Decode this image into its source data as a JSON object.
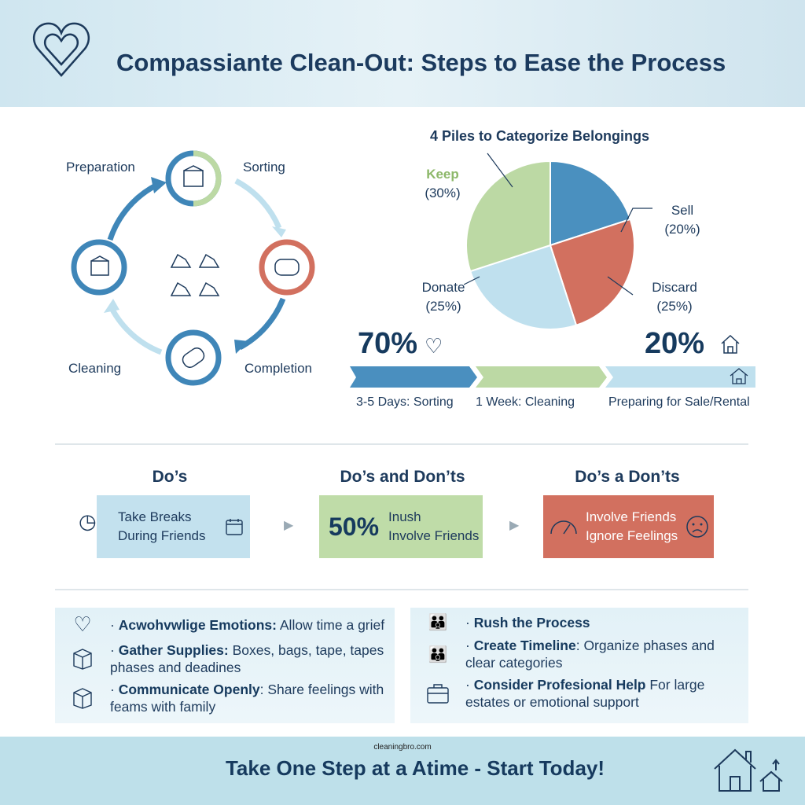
{
  "header": {
    "title": "Compassiante Clean-Out: Steps to Ease the Process",
    "icon": "heart-icon"
  },
  "cycle": {
    "steps": [
      {
        "label": "Preparation",
        "icon": "box-icon"
      },
      {
        "label": "Sorting",
        "icon": "sponge-icon"
      },
      {
        "label": "Completion",
        "icon": "sponge-icon"
      },
      {
        "label": "Cleaning",
        "icon": "box-icon"
      }
    ],
    "center_icon": "piles-icon"
  },
  "pie": {
    "title": "4 Piles to Categorize Belongings",
    "slices": [
      {
        "label": "Sell",
        "pct_label": "(20%)",
        "value": 20,
        "color": "#4a90bf"
      },
      {
        "label": "Discard",
        "pct_label": "(25%)",
        "value": 25,
        "color": "#d2705f"
      },
      {
        "label": "Donate",
        "pct_label": "(25%)",
        "value": 25,
        "color": "#bfe0ee"
      },
      {
        "label": "Keep",
        "pct_label": "(30%)",
        "value": 30,
        "color": "#bcd9a4"
      }
    ]
  },
  "stats": {
    "left": "70%",
    "right": "20%"
  },
  "timeline": [
    {
      "label": "3-5 Days: Sorting",
      "color": "#4a8fbf"
    },
    {
      "label": "1 Week: Cleaning",
      "color": "#bcd9a4"
    },
    {
      "label": "Preparing for Sale/Rental",
      "color": "#bfe0ee"
    }
  ],
  "dos": {
    "headers": [
      "Do’s",
      "Do’s and Don’ts",
      "Do’s a Don’ts"
    ],
    "boxes": [
      {
        "lines": [
          "Take Breaks",
          "During Friends"
        ],
        "color": "#c3e1ee"
      },
      {
        "stat": "50%",
        "lines": [
          "Inush",
          "Involve Friends"
        ],
        "color": "#bfdca8"
      },
      {
        "lines": [
          "Involve Friends",
          "Ignore Feelings"
        ],
        "color": "#d2705f"
      }
    ]
  },
  "tips_left": [
    {
      "bold": "Acwohvwlige Emotions:",
      "text": " Allow time a grief",
      "icon": "heart-icon"
    },
    {
      "bold": "Gather Supplies:",
      "text": " Boxes, bags, tape, tapes phases and deadines",
      "icon": "box-icon"
    },
    {
      "bold": "Communicate Openly",
      "text": ": Share feelings with feams with family",
      "icon": "box-icon"
    }
  ],
  "tips_right": [
    {
      "bold": "Rush the Process",
      "text": "",
      "icon": "family-icon"
    },
    {
      "bold": "Create Timeline",
      "text": ": Organize phases and clear categories",
      "icon": "family-icon"
    },
    {
      "bold": "Consider Profesional Help",
      "text": " For large estates or emotional support",
      "icon": "briefcase-icon"
    }
  ],
  "footer": {
    "site": "cleaningbro.com",
    "tagline": "Take One Step at a Atime - Start Today!",
    "icon": "house-icon"
  }
}
